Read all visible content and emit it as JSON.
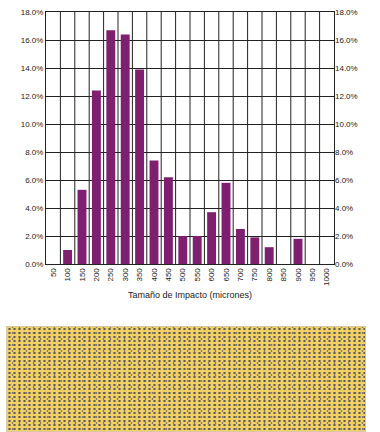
{
  "chart_data": {
    "type": "bar",
    "x_label": "Tamaño de Impacto (micrones)",
    "categories": [
      "50",
      "100",
      "150",
      "200",
      "250",
      "300",
      "350",
      "400",
      "450",
      "500",
      "550",
      "600",
      "650",
      "700",
      "750",
      "800",
      "850",
      "900",
      "950",
      "1000"
    ],
    "values": [
      0,
      1.0,
      5.3,
      12.4,
      16.7,
      16.4,
      13.9,
      7.4,
      6.2,
      2.0,
      2.0,
      3.7,
      5.8,
      2.5,
      1.9,
      1.2,
      0,
      1.8,
      0,
      0
    ],
    "color": "#7f1f6f",
    "ylim": [
      0,
      18
    ],
    "yticks": [
      {
        "value": 0,
        "label": "0.0%"
      },
      {
        "value": 2,
        "label": "2.0%"
      },
      {
        "value": 4,
        "label": "4.0%"
      },
      {
        "value": 6,
        "label": "6.0%"
      },
      {
        "value": 8,
        "label": "8.0%"
      },
      {
        "value": 10,
        "label": "10.0%"
      },
      {
        "value": 12,
        "label": "12.0%"
      },
      {
        "value": 14,
        "label": "14.0%"
      },
      {
        "value": 16,
        "label": "16.0%"
      },
      {
        "value": 18,
        "label": "18.0%"
      }
    ],
    "y2lim": [
      0,
      18
    ],
    "y2ticks": [
      {
        "value": 0,
        "label": "0.0%"
      },
      {
        "value": 2,
        "label": "2.0%"
      },
      {
        "value": 4,
        "label": "4.0%"
      },
      {
        "value": 6,
        "label": "6.0%"
      },
      {
        "value": 8,
        "label": "8.0%"
      },
      {
        "value": 10,
        "label": "10.0%"
      },
      {
        "value": 12,
        "label": "12.0%"
      },
      {
        "value": 14,
        "label": "14.0%"
      },
      {
        "value": 16,
        "label": "16.0%"
      },
      {
        "value": 18,
        "label": "18.0%"
      }
    ],
    "grid": true
  }
}
